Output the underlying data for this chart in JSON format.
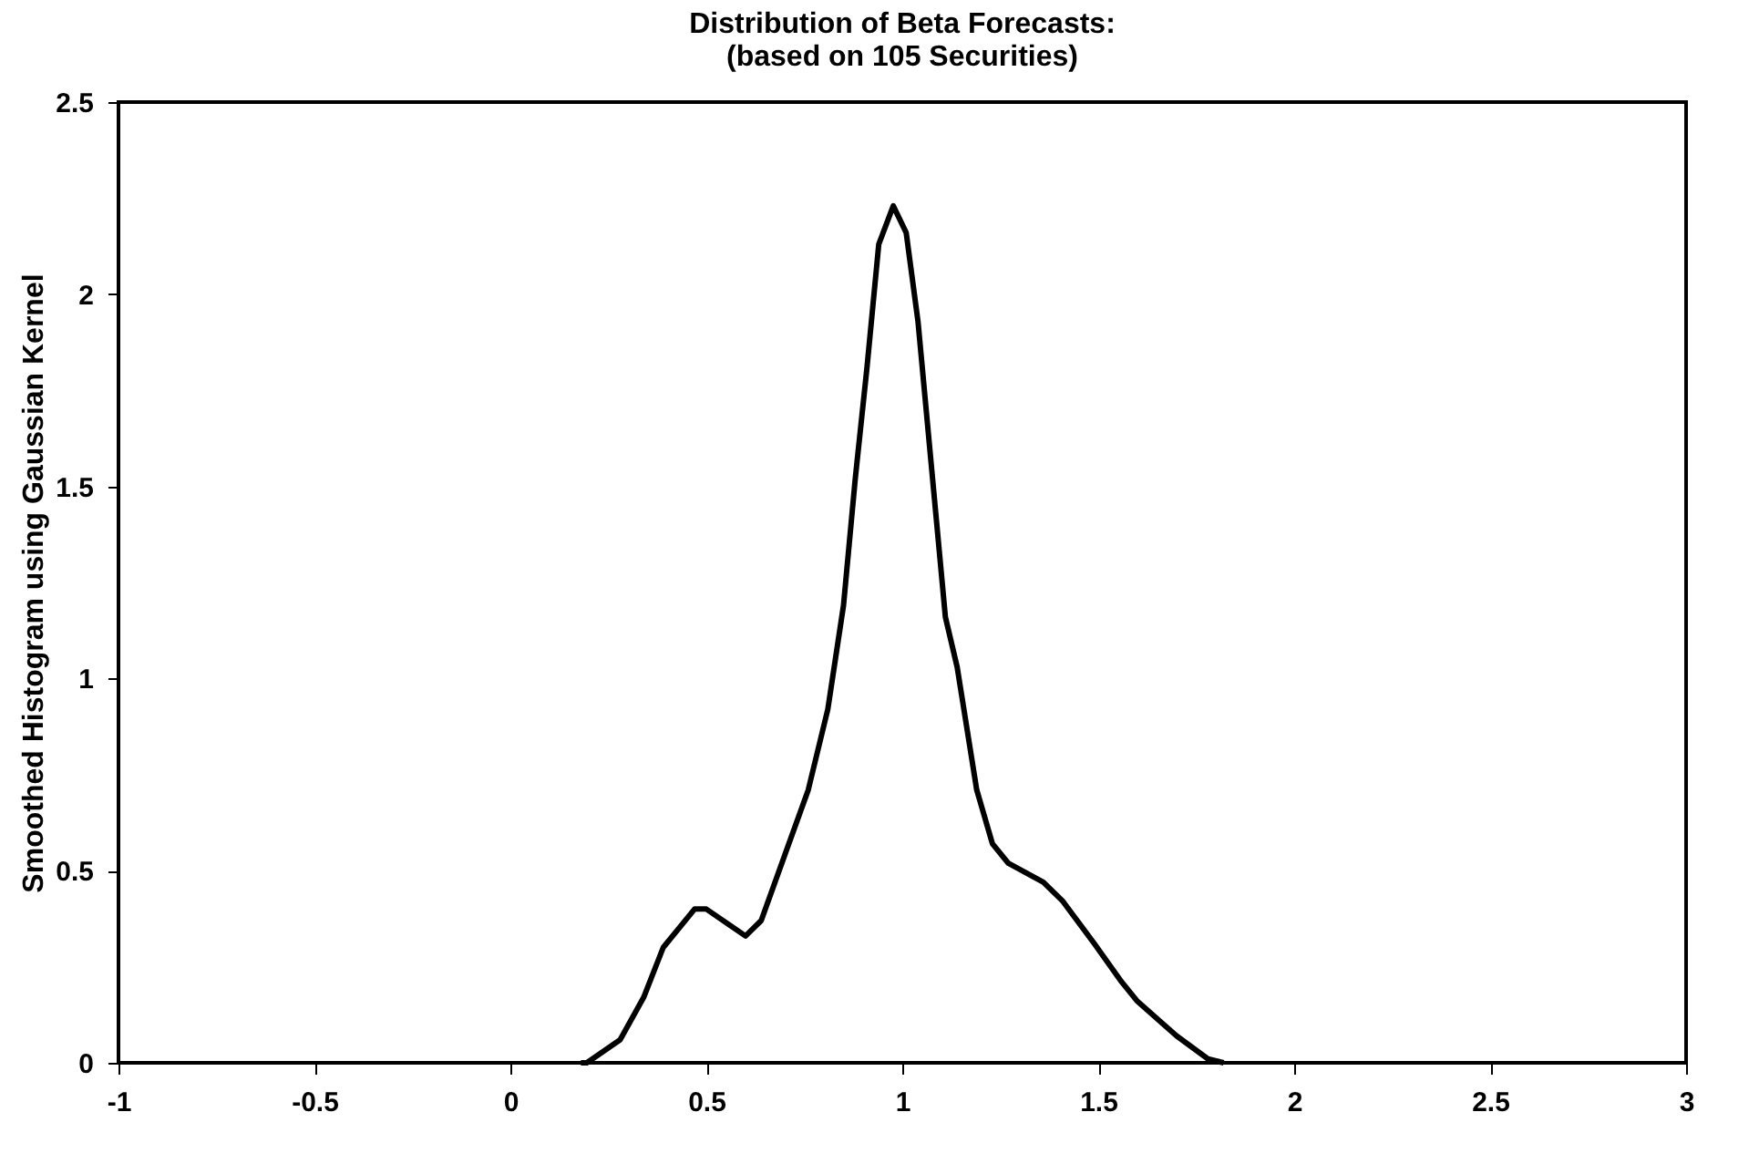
{
  "chart_data": {
    "type": "line",
    "title": [
      "Distribution of Beta Forecasts:",
      "(based on 105 Securities)"
    ],
    "ylabel": "Smoothed Histogram using Gaussian Kernel",
    "xlim": [
      -1,
      3
    ],
    "xticks": [
      -1,
      -0.5,
      0,
      0.5,
      1,
      1.5,
      2,
      2.5,
      3
    ],
    "ylim": [
      0,
      2.5
    ],
    "yticks": [
      0,
      0.5,
      1,
      1.5,
      2,
      2.5
    ],
    "grid": false,
    "series": [
      {
        "color": "#000000",
        "x": [
          0.18,
          0.195,
          0.28,
          0.34,
          0.39,
          0.47,
          0.5,
          0.6,
          0.64,
          0.7,
          0.76,
          0.81,
          0.85,
          0.88,
          0.91,
          0.94,
          0.977,
          1.01,
          1.04,
          1.07,
          1.11,
          1.14,
          1.19,
          1.23,
          1.27,
          1.36,
          1.41,
          1.49,
          1.56,
          1.6,
          1.7,
          1.78,
          1.82
        ],
        "values": [
          0,
          0,
          0.06,
          0.17,
          0.3,
          0.4,
          0.4,
          0.33,
          0.37,
          0.54,
          0.71,
          0.92,
          1.19,
          1.52,
          1.81,
          2.13,
          2.23,
          2.16,
          1.93,
          1.6,
          1.16,
          1.03,
          0.71,
          0.57,
          0.52,
          0.47,
          0.42,
          0.31,
          0.21,
          0.16,
          0.07,
          0.01,
          0
        ]
      }
    ]
  }
}
